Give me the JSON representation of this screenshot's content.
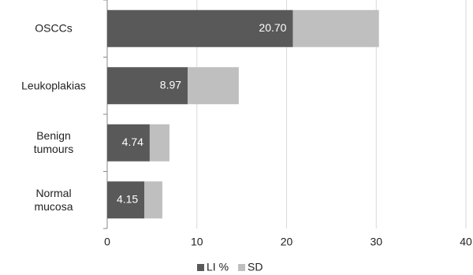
{
  "chart_data": {
    "type": "stacked-barh",
    "categories": [
      "OSCCs",
      "Leukoplakias",
      "Benign\ntumours",
      "Normal\nmucosa"
    ],
    "series": [
      {
        "name": "LI %",
        "color": "#595959",
        "values": [
          20.7,
          8.97,
          4.74,
          4.15
        ],
        "value_labels": [
          "20.70",
          "8.97",
          "4.74",
          "4.15"
        ]
      },
      {
        "name": "SD",
        "color": "#bfbfbf",
        "values": [
          9.6,
          5.7,
          2.2,
          2.0
        ]
      }
    ],
    "xlim": [
      0,
      40
    ],
    "xticks": [
      0,
      10,
      20,
      30,
      40
    ],
    "grid": true,
    "legend": "bottom"
  }
}
